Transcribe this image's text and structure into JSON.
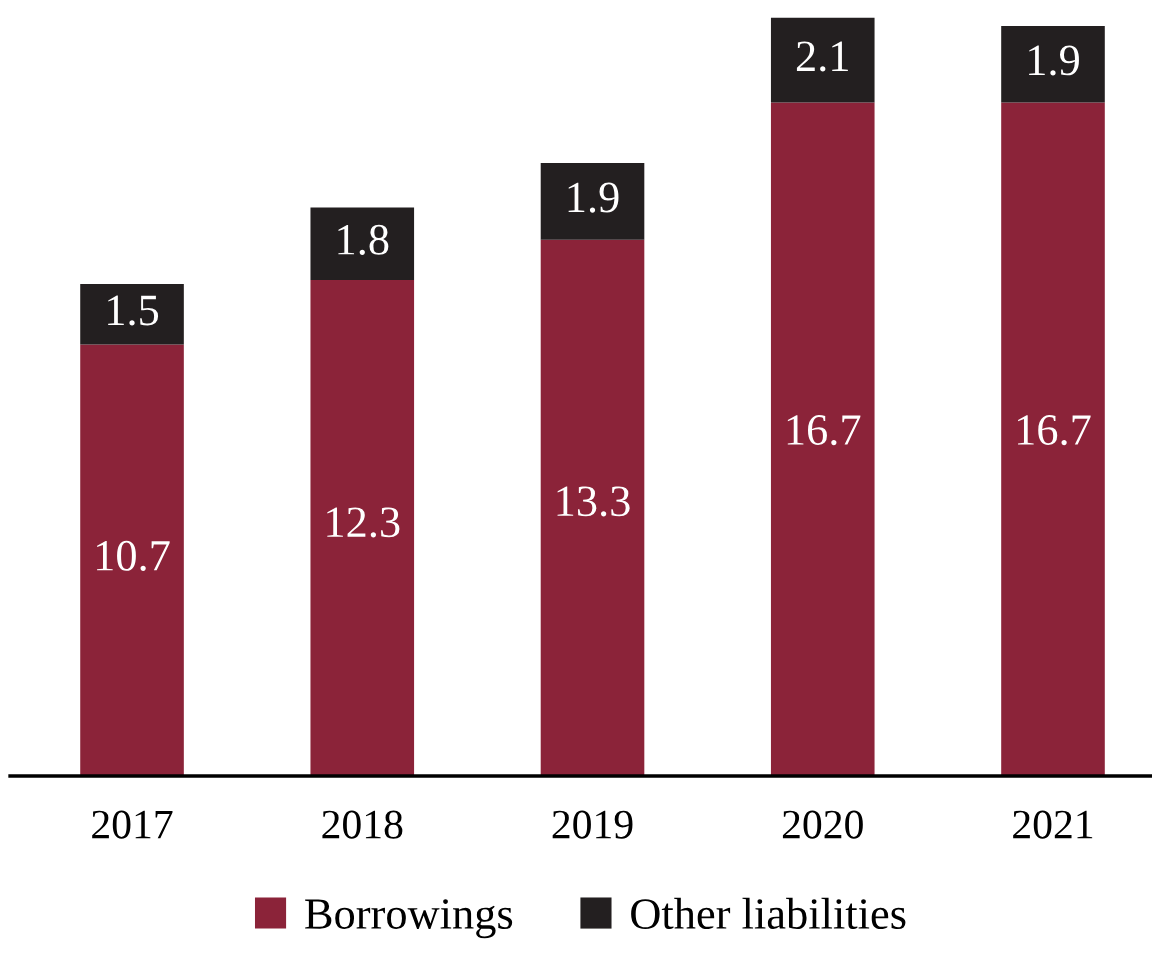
{
  "chart_data": {
    "type": "bar",
    "stacked": true,
    "categories": [
      "2017",
      "2018",
      "2019",
      "2020",
      "2021"
    ],
    "series": [
      {
        "name": "Borrowings",
        "color": "#8b2339",
        "values": [
          10.7,
          12.3,
          13.3,
          16.7,
          16.7
        ]
      },
      {
        "name": "Other liabilities",
        "color": "#231f20",
        "values": [
          1.5,
          1.8,
          1.9,
          2.1,
          1.9
        ]
      }
    ],
    "data_labels": true,
    "legend": "bottom",
    "grid": false,
    "tick_labels": "x"
  }
}
